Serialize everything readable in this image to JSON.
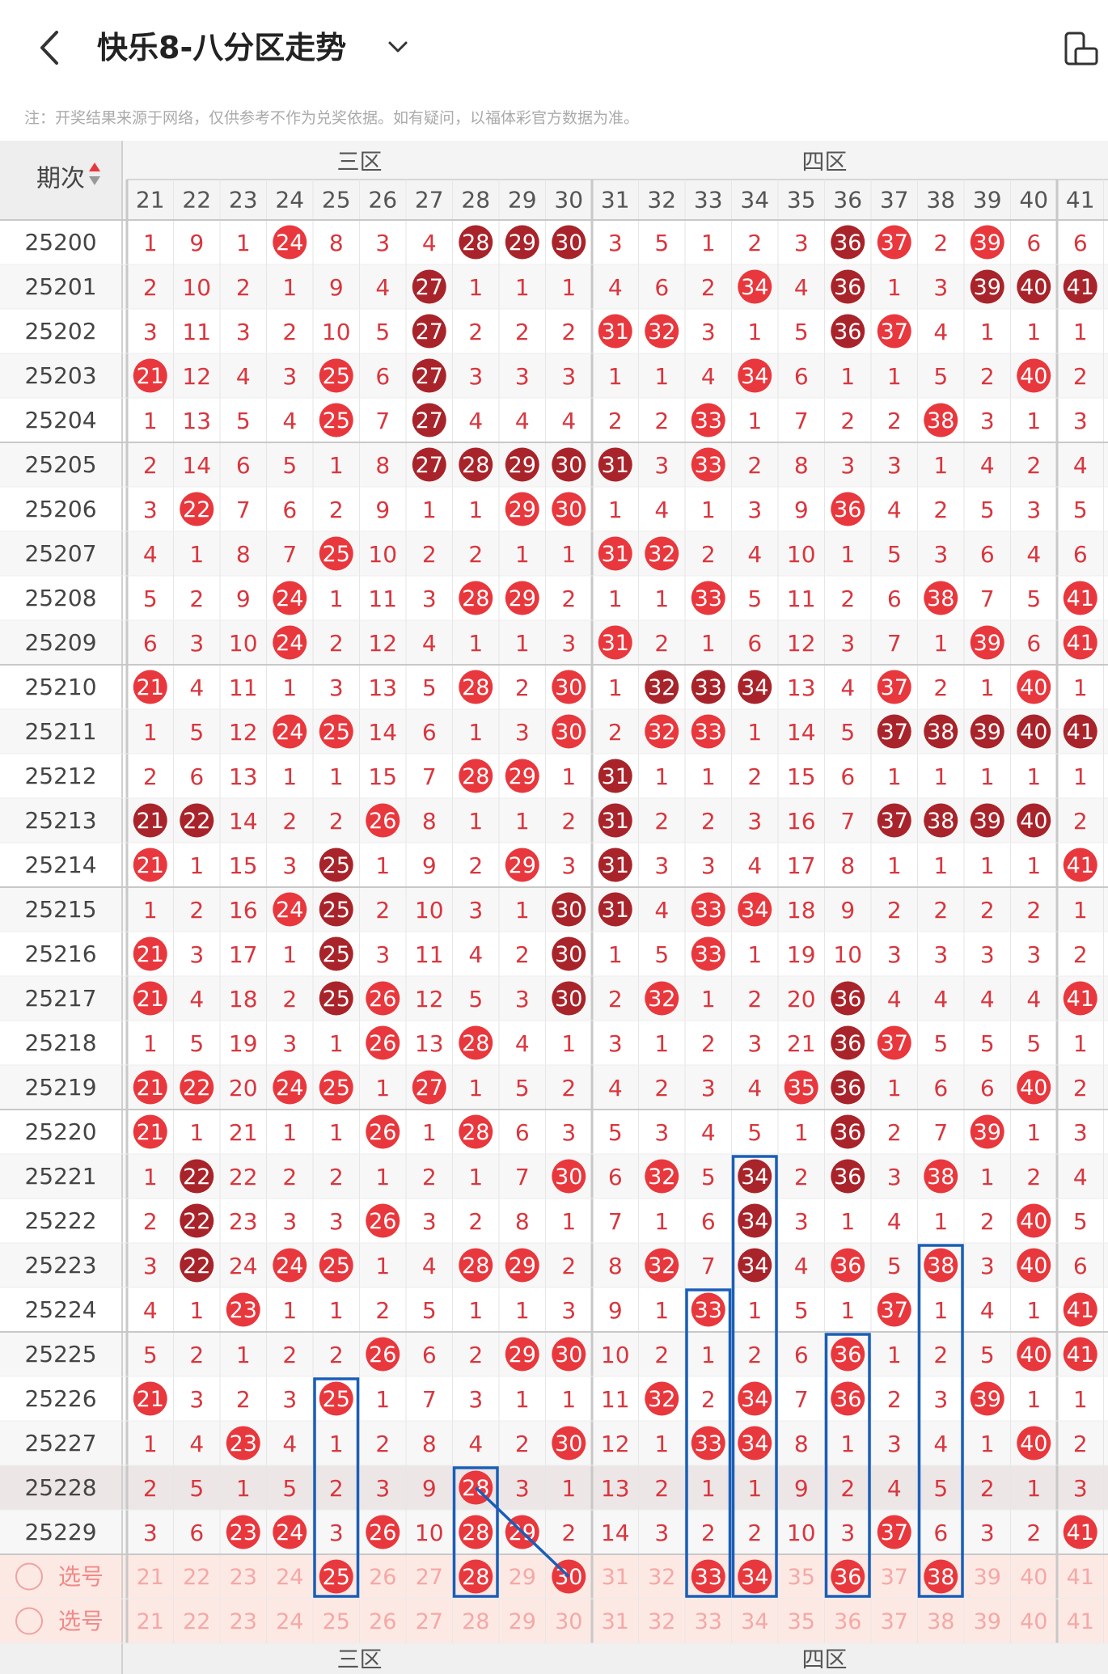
{
  "header": {
    "title": "快乐8-八分区走势",
    "note": "注：开奖结果来源于网络，仅供参考不作为兑奖依据。如有疑问，以福体彩官方数据为准。"
  },
  "table": {
    "period_header": "期次",
    "zones": [
      "三区",
      "四区"
    ],
    "columns": [
      21,
      22,
      23,
      24,
      25,
      26,
      27,
      28,
      29,
      30,
      31,
      32,
      33,
      34,
      35,
      36,
      37,
      38,
      39,
      40,
      41
    ],
    "select_label": "选号",
    "rows": [
      {
        "period": "25200",
        "cells": [
          "1",
          "9",
          "1",
          "H24",
          "8",
          "3",
          "4",
          "C28",
          "C29",
          "C30",
          "3",
          "5",
          "1",
          "2",
          "3",
          "C36",
          "H37",
          "2",
          "H39",
          "6",
          "6"
        ]
      },
      {
        "period": "25201",
        "cells": [
          "2",
          "10",
          "2",
          "1",
          "9",
          "4",
          "C27",
          "1",
          "1",
          "1",
          "4",
          "6",
          "2",
          "H34",
          "4",
          "C36",
          "1",
          "3",
          "C39",
          "C40",
          "C41"
        ]
      },
      {
        "period": "25202",
        "cells": [
          "3",
          "11",
          "3",
          "2",
          "10",
          "5",
          "C27",
          "2",
          "2",
          "2",
          "H31",
          "H32",
          "3",
          "1",
          "5",
          "C36",
          "H37",
          "4",
          "1",
          "1",
          "1"
        ]
      },
      {
        "period": "25203",
        "cells": [
          "H21",
          "12",
          "4",
          "3",
          "H25",
          "6",
          "C27",
          "3",
          "3",
          "3",
          "1",
          "1",
          "4",
          "H34",
          "6",
          "1",
          "1",
          "5",
          "2",
          "H40",
          "2"
        ]
      },
      {
        "period": "25204",
        "cells": [
          "1",
          "13",
          "5",
          "4",
          "H25",
          "7",
          "C27",
          "4",
          "4",
          "4",
          "2",
          "2",
          "H33",
          "1",
          "7",
          "2",
          "2",
          "H38",
          "3",
          "1",
          "3"
        ]
      },
      {
        "period": "25205",
        "cells": [
          "2",
          "14",
          "6",
          "5",
          "1",
          "8",
          "C27",
          "C28",
          "C29",
          "C30",
          "C31",
          "3",
          "H33",
          "2",
          "8",
          "3",
          "3",
          "1",
          "4",
          "2",
          "4"
        ]
      },
      {
        "period": "25206",
        "cells": [
          "3",
          "H22",
          "7",
          "6",
          "2",
          "9",
          "1",
          "1",
          "H29",
          "H30",
          "1",
          "4",
          "1",
          "3",
          "9",
          "H36",
          "4",
          "2",
          "5",
          "3",
          "5"
        ]
      },
      {
        "period": "25207",
        "cells": [
          "4",
          "1",
          "8",
          "7",
          "H25",
          "10",
          "2",
          "2",
          "1",
          "1",
          "H31",
          "H32",
          "2",
          "4",
          "10",
          "1",
          "5",
          "3",
          "6",
          "4",
          "6"
        ]
      },
      {
        "period": "25208",
        "cells": [
          "5",
          "2",
          "9",
          "H24",
          "1",
          "11",
          "3",
          "H28",
          "H29",
          "2",
          "1",
          "1",
          "H33",
          "5",
          "11",
          "2",
          "6",
          "H38",
          "7",
          "5",
          "H41"
        ]
      },
      {
        "period": "25209",
        "cells": [
          "6",
          "3",
          "10",
          "H24",
          "2",
          "12",
          "4",
          "1",
          "1",
          "3",
          "H31",
          "2",
          "1",
          "6",
          "12",
          "3",
          "7",
          "1",
          "H39",
          "6",
          "H41"
        ]
      },
      {
        "period": "25210",
        "cells": [
          "H21",
          "4",
          "11",
          "1",
          "3",
          "13",
          "5",
          "H28",
          "2",
          "H30",
          "1",
          "C32",
          "C33",
          "C34",
          "13",
          "4",
          "H37",
          "2",
          "1",
          "H40",
          "1"
        ]
      },
      {
        "period": "25211",
        "cells": [
          "1",
          "5",
          "12",
          "H24",
          "H25",
          "14",
          "6",
          "1",
          "3",
          "H30",
          "2",
          "H32",
          "H33",
          "1",
          "14",
          "5",
          "C37",
          "C38",
          "C39",
          "C40",
          "C41"
        ]
      },
      {
        "period": "25212",
        "cells": [
          "2",
          "6",
          "13",
          "1",
          "1",
          "15",
          "7",
          "H28",
          "H29",
          "1",
          "C31",
          "1",
          "1",
          "2",
          "15",
          "6",
          "1",
          "1",
          "1",
          "1",
          "1"
        ]
      },
      {
        "period": "25213",
        "cells": [
          "C21",
          "C22",
          "14",
          "2",
          "2",
          "H26",
          "8",
          "1",
          "1",
          "2",
          "C31",
          "2",
          "2",
          "3",
          "16",
          "7",
          "C37",
          "C38",
          "C39",
          "C40",
          "2"
        ]
      },
      {
        "period": "25214",
        "cells": [
          "H21",
          "1",
          "15",
          "3",
          "C25",
          "1",
          "9",
          "2",
          "H29",
          "3",
          "C31",
          "3",
          "3",
          "4",
          "17",
          "8",
          "1",
          "1",
          "1",
          "1",
          "H41"
        ]
      },
      {
        "period": "25215",
        "cells": [
          "1",
          "2",
          "16",
          "H24",
          "C25",
          "2",
          "10",
          "3",
          "1",
          "C30",
          "C31",
          "4",
          "H33",
          "H34",
          "18",
          "9",
          "2",
          "2",
          "2",
          "2",
          "1"
        ]
      },
      {
        "period": "25216",
        "cells": [
          "H21",
          "3",
          "17",
          "1",
          "C25",
          "3",
          "11",
          "4",
          "2",
          "C30",
          "1",
          "5",
          "H33",
          "1",
          "19",
          "10",
          "3",
          "3",
          "3",
          "3",
          "2"
        ]
      },
      {
        "period": "25217",
        "cells": [
          "H21",
          "4",
          "18",
          "2",
          "C25",
          "H26",
          "12",
          "5",
          "3",
          "C30",
          "2",
          "H32",
          "1",
          "2",
          "20",
          "C36",
          "4",
          "4",
          "4",
          "4",
          "H41"
        ]
      },
      {
        "period": "25218",
        "cells": [
          "1",
          "5",
          "19",
          "3",
          "1",
          "H26",
          "13",
          "H28",
          "4",
          "1",
          "3",
          "1",
          "2",
          "3",
          "21",
          "C36",
          "H37",
          "5",
          "5",
          "5",
          "1"
        ]
      },
      {
        "period": "25219",
        "cells": [
          "H21",
          "H22",
          "20",
          "H24",
          "H25",
          "1",
          "H27",
          "1",
          "5",
          "2",
          "4",
          "2",
          "3",
          "4",
          "H35",
          "C36",
          "1",
          "6",
          "6",
          "H40",
          "2"
        ]
      },
      {
        "period": "25220",
        "cells": [
          "H21",
          "1",
          "21",
          "1",
          "1",
          "H26",
          "1",
          "H28",
          "6",
          "3",
          "5",
          "3",
          "4",
          "5",
          "1",
          "C36",
          "2",
          "7",
          "H39",
          "1",
          "3"
        ]
      },
      {
        "period": "25221",
        "cells": [
          "1",
          "C22",
          "22",
          "2",
          "2",
          "1",
          "2",
          "1",
          "7",
          "H30",
          "6",
          "H32",
          "5",
          "C34",
          "2",
          "C36",
          "3",
          "H38",
          "1",
          "2",
          "4"
        ]
      },
      {
        "period": "25222",
        "cells": [
          "2",
          "C22",
          "23",
          "3",
          "3",
          "H26",
          "3",
          "2",
          "8",
          "1",
          "7",
          "1",
          "6",
          "C34",
          "3",
          "1",
          "4",
          "1",
          "2",
          "H40",
          "5"
        ]
      },
      {
        "period": "25223",
        "cells": [
          "3",
          "C22",
          "24",
          "H24",
          "H25",
          "1",
          "4",
          "H28",
          "H29",
          "2",
          "8",
          "H32",
          "7",
          "C34",
          "4",
          "H36",
          "5",
          "H38",
          "3",
          "H40",
          "6"
        ]
      },
      {
        "period": "25224",
        "cells": [
          "4",
          "1",
          "H23",
          "1",
          "1",
          "2",
          "5",
          "1",
          "1",
          "3",
          "9",
          "1",
          "H33",
          "1",
          "5",
          "1",
          "H37",
          "1",
          "4",
          "1",
          "H41"
        ]
      },
      {
        "period": "25225",
        "cells": [
          "5",
          "2",
          "1",
          "2",
          "2",
          "H26",
          "6",
          "2",
          "H29",
          "H30",
          "10",
          "2",
          "1",
          "2",
          "6",
          "H36",
          "1",
          "2",
          "5",
          "H40",
          "H41"
        ]
      },
      {
        "period": "25226",
        "cells": [
          "H21",
          "3",
          "2",
          "3",
          "H25",
          "1",
          "7",
          "3",
          "1",
          "1",
          "11",
          "H32",
          "2",
          "H34",
          "7",
          "H36",
          "2",
          "3",
          "H39",
          "1",
          "1"
        ]
      },
      {
        "period": "25227",
        "cells": [
          "1",
          "4",
          "H23",
          "4",
          "1",
          "2",
          "8",
          "4",
          "2",
          "H30",
          "12",
          "1",
          "H33",
          "H34",
          "8",
          "1",
          "3",
          "4",
          "1",
          "H40",
          "2"
        ]
      },
      {
        "period": "25228",
        "cells": [
          "2",
          "5",
          "1",
          "5",
          "2",
          "3",
          "9",
          "H28",
          "3",
          "1",
          "13",
          "2",
          "1",
          "1",
          "9",
          "2",
          "4",
          "5",
          "2",
          "1",
          "3"
        ]
      },
      {
        "period": "25229",
        "cells": [
          "3",
          "6",
          "H23",
          "H24",
          "3",
          "H26",
          "10",
          "H28",
          "H29",
          "2",
          "14",
          "3",
          "2",
          "2",
          "10",
          "3",
          "H37",
          "6",
          "3",
          "2",
          "H41"
        ]
      }
    ],
    "selected_row_balls": [
      25,
      28,
      30,
      33,
      34,
      36,
      38
    ]
  },
  "colors": {
    "hot": "#e8383d",
    "cold": "#a8242a",
    "number_text": "#d9363e",
    "box": "#1a5eb8",
    "select_bg": "#fde9e4",
    "highlight_row": "#ece6e6"
  }
}
